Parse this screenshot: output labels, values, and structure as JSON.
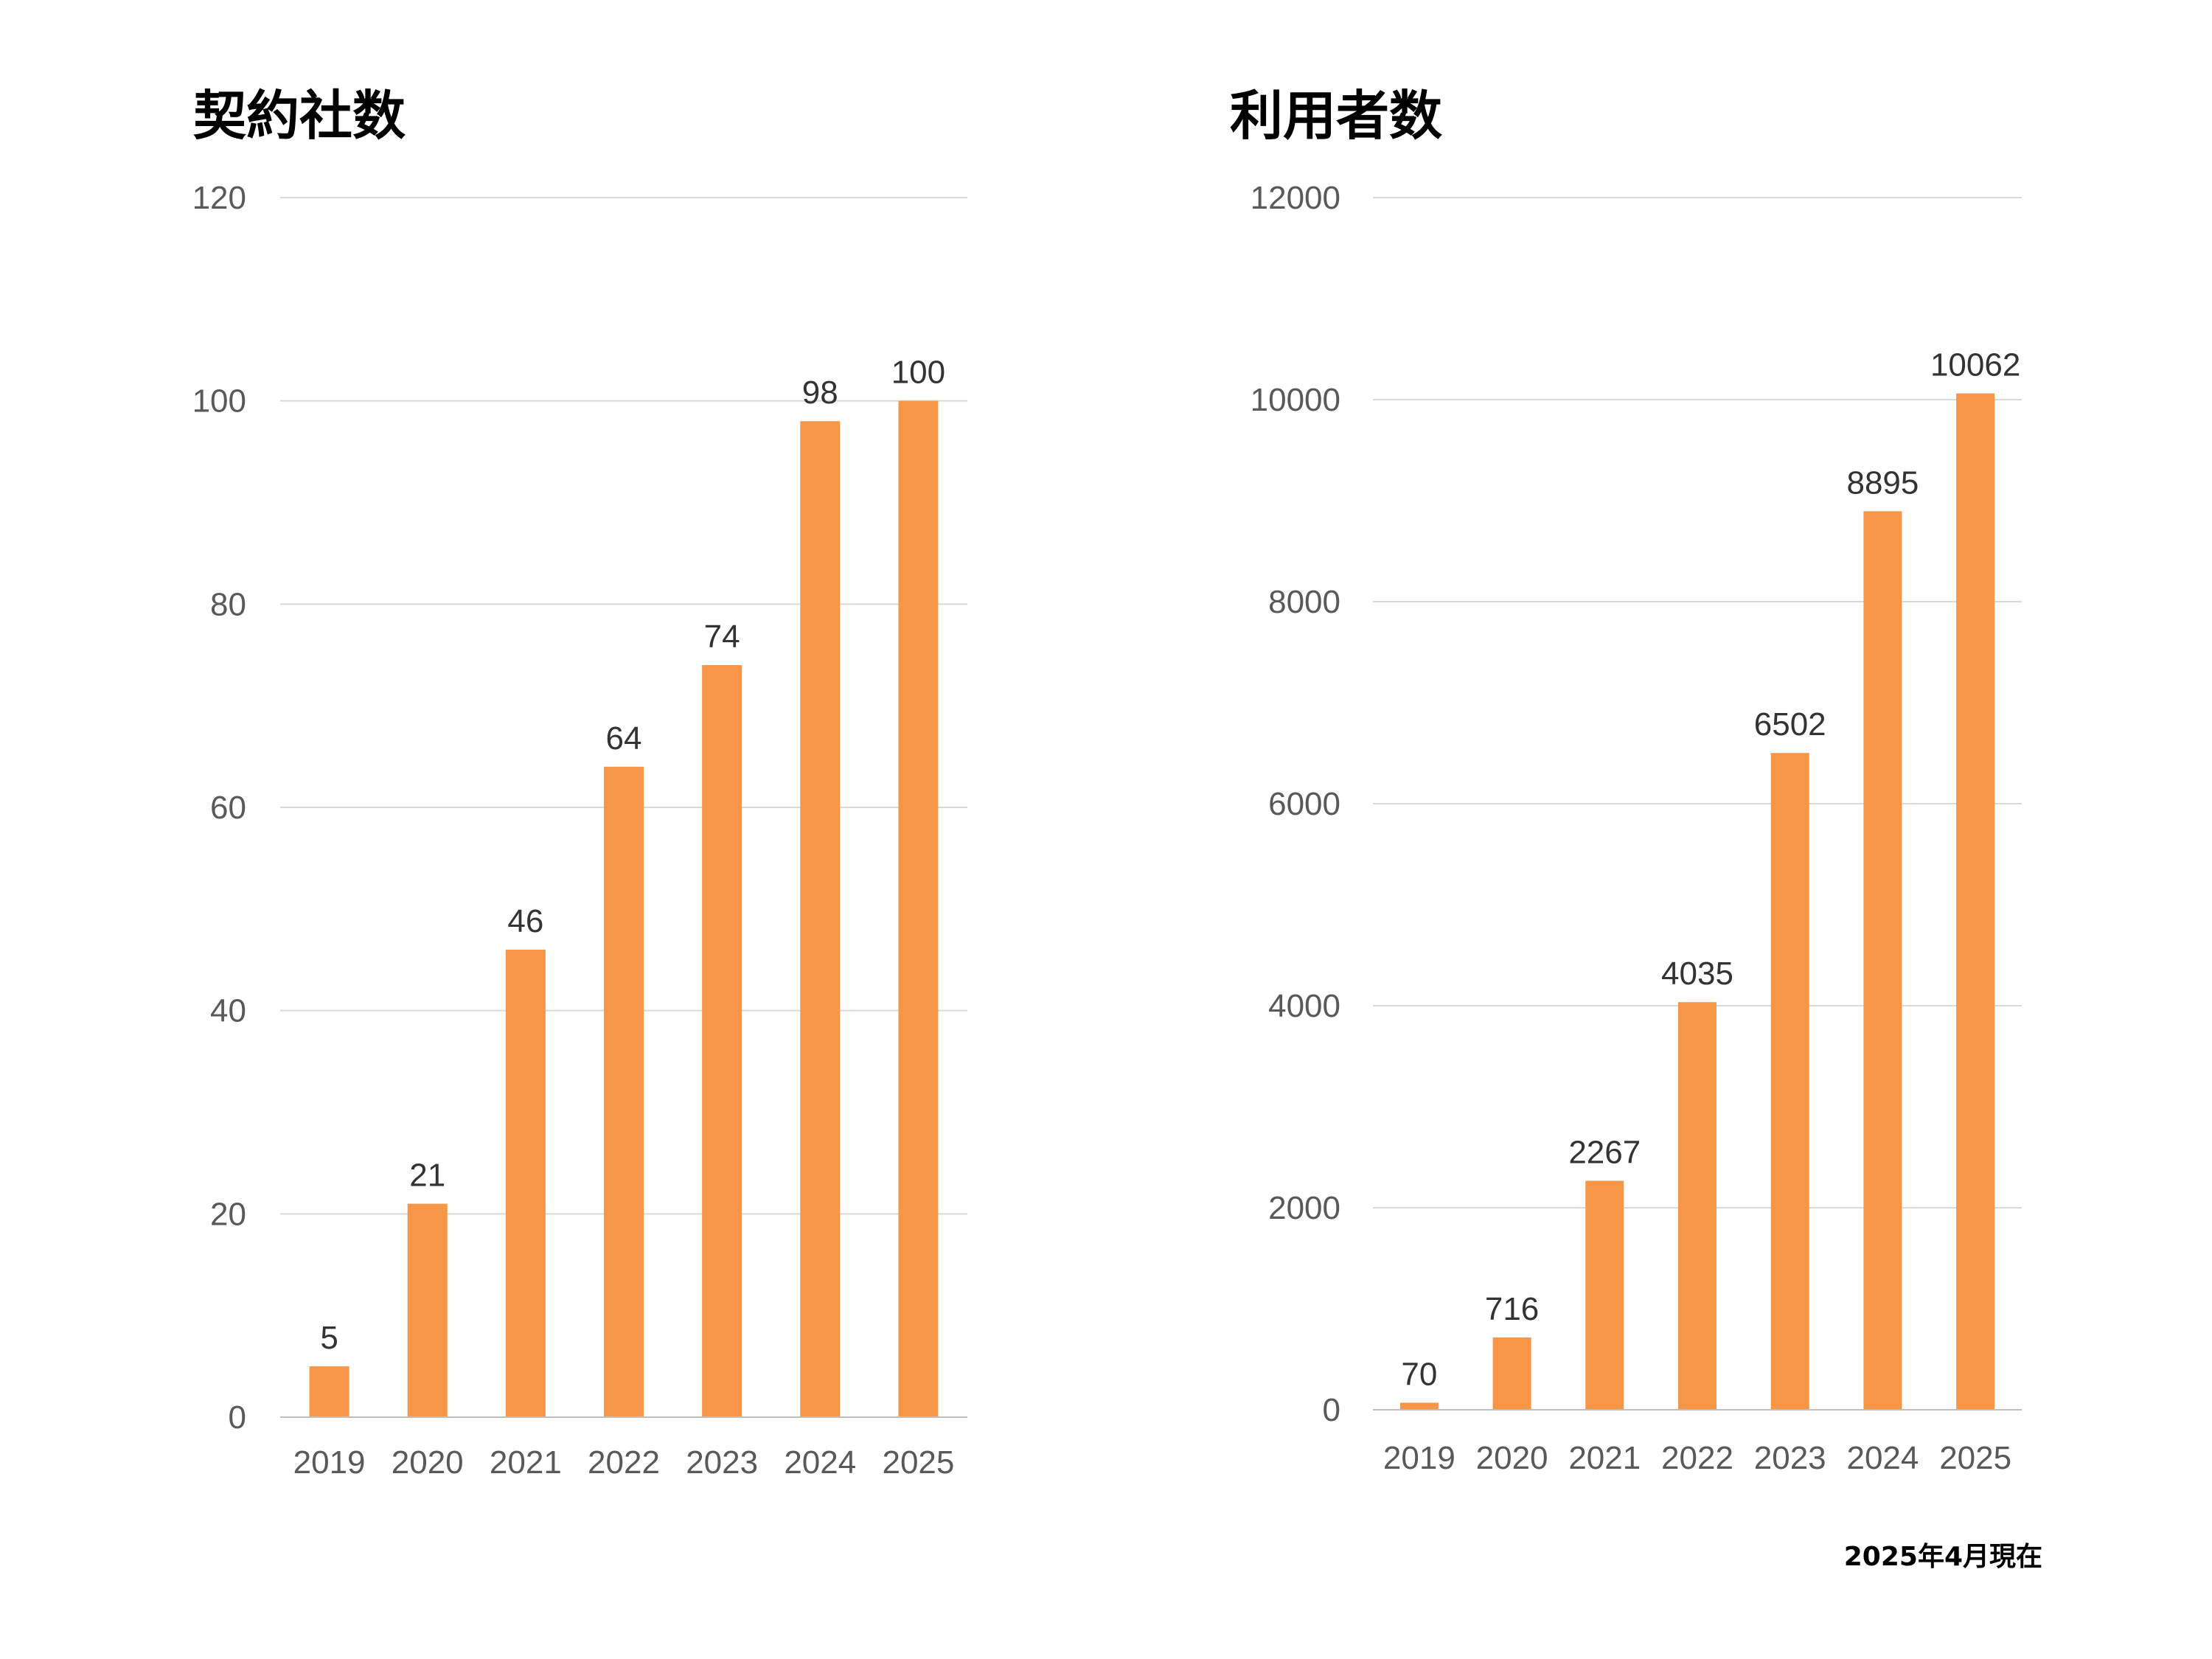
{
  "chart_data": [
    {
      "type": "bar",
      "title": "契約社数",
      "categories": [
        "2019",
        "2020",
        "2021",
        "2022",
        "2023",
        "2024",
        "2025"
      ],
      "values": [
        5,
        21,
        46,
        64,
        74,
        98,
        100
      ],
      "ylim": [
        0,
        120
      ],
      "yticks": [
        0,
        20,
        40,
        60,
        80,
        100,
        120
      ],
      "grid": true,
      "bar_color": "#F79646",
      "data_labels": true
    },
    {
      "type": "bar",
      "title": "利用者数",
      "categories": [
        "2019",
        "2020",
        "2021",
        "2022",
        "2023",
        "2024",
        "2025"
      ],
      "values": [
        70,
        716,
        2267,
        4035,
        6502,
        8895,
        10062
      ],
      "ylim": [
        0,
        12000
      ],
      "yticks": [
        0,
        2000,
        4000,
        6000,
        8000,
        10000,
        12000
      ],
      "grid": true,
      "bar_color": "#F79646",
      "data_labels": true
    }
  ],
  "footnote": "2025年4月現在"
}
